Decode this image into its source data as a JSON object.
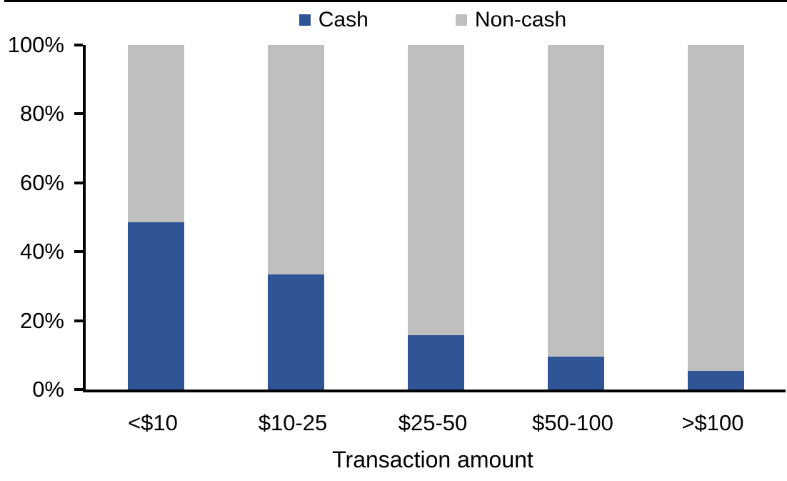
{
  "chart_data": {
    "type": "bar",
    "variant": "100-percent-stacked-column",
    "title": "",
    "categories": [
      "<$10",
      "$10-25",
      "$25-50",
      "$50-100",
      ">$100"
    ],
    "series": [
      {
        "name": "Cash",
        "color": "#2F5597",
        "values": [
          48.5,
          33.4,
          15.7,
          9.6,
          5.5
        ]
      },
      {
        "name": "Non-cash",
        "color": "#BFBFBF",
        "values": [
          51.5,
          66.6,
          84.3,
          90.4,
          94.5
        ]
      }
    ],
    "xlabel": "Transaction amount",
    "ylabel": "",
    "ylim": [
      0,
      100
    ],
    "yticks": [
      0,
      20,
      40,
      60,
      80,
      100
    ],
    "ytick_labels": [
      "0%",
      "20%",
      "40%",
      "60%",
      "80%",
      "100%"
    ],
    "legend_position": "top-center",
    "grid": false,
    "axis_color": "#000000",
    "background_color": "#FFFFFF"
  }
}
